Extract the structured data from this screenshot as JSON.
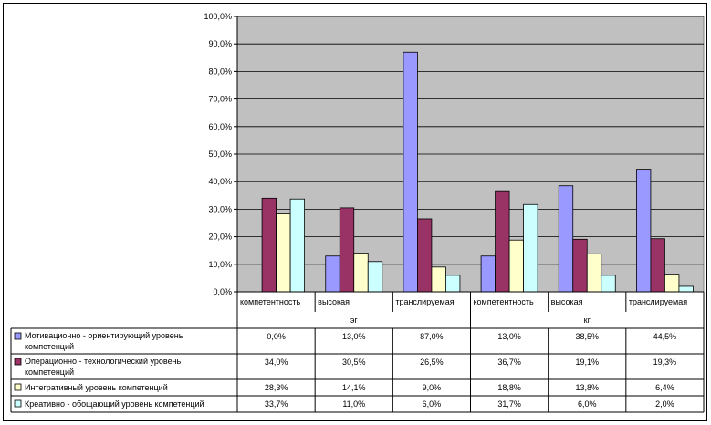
{
  "chart_data": {
    "type": "bar",
    "ylim": [
      0,
      100
    ],
    "yticks": [
      "0,0%",
      "10,0%",
      "20,0%",
      "30,0%",
      "40,0%",
      "50,0%",
      "60,0%",
      "70,0%",
      "80,0%",
      "90,0%",
      "100,0%"
    ],
    "grid": true,
    "plot_background": "#c0c0c0",
    "legend": "table-below",
    "categories": [
      "компетентность",
      "высокая",
      "транслируемая",
      "компетентность",
      "высокая",
      "транслируемая"
    ],
    "groups": [
      {
        "label": "эг",
        "span": 3
      },
      {
        "label": "кг",
        "span": 3
      }
    ],
    "series": [
      {
        "name": "Мотивационно - ориентирующий уровень компетенций",
        "color": "#9999ff",
        "values": [
          0.0,
          13.0,
          87.0,
          13.0,
          38.5,
          44.5
        ],
        "labels": [
          "0,0%",
          "13,0%",
          "87,0%",
          "13,0%",
          "38,5%",
          "44,5%"
        ]
      },
      {
        "name": "Операционно - технологический уровень компетенций",
        "color": "#993366",
        "values": [
          34.0,
          30.5,
          26.5,
          36.7,
          19.1,
          19.3
        ],
        "labels": [
          "34,0%",
          "30,5%",
          "26,5%",
          "36,7%",
          "19,1%",
          "19,3%"
        ]
      },
      {
        "name": "Интегративный уровень компетенций",
        "color": "#ffffcc",
        "values": [
          28.3,
          14.1,
          9.0,
          18.8,
          13.8,
          6.4
        ],
        "labels": [
          "28,3%",
          "14,1%",
          "9,0%",
          "18,8%",
          "13,8%",
          "6,4%"
        ]
      },
      {
        "name": "Креативно - обощающий уровень компетенций",
        "color": "#ccffff",
        "values": [
          33.7,
          11.0,
          6.0,
          31.7,
          6.0,
          2.0
        ],
        "labels": [
          "33,7%",
          "11,0%",
          "6,0%",
          "31,7%",
          "6,0%",
          "2,0%"
        ]
      }
    ]
  }
}
